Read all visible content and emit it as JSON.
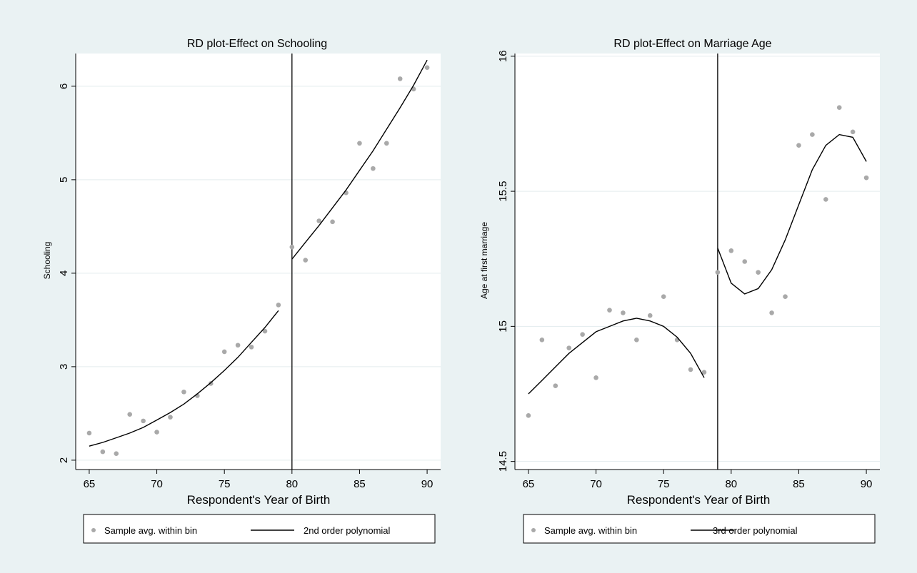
{
  "colors": {
    "background": "#eaf2f3",
    "plot_area": "#ffffff",
    "grid": "#e3ecee",
    "marker": "#a9a9a9",
    "line": "#000000"
  },
  "chart_data": [
    {
      "type": "scatter",
      "title": "RD plot-Effect on Schooling",
      "xlabel": "Respondent's Year of Birth",
      "ylabel": "Schooling",
      "xlim": [
        64,
        91
      ],
      "ylim": [
        1.9,
        6.35
      ],
      "xticks": [
        65,
        70,
        75,
        80,
        85,
        90
      ],
      "yticks": [
        2,
        3,
        4,
        5,
        6
      ],
      "grid": true,
      "cutoff": 80,
      "series": [
        {
          "name": "Sample avg. within bin",
          "kind": "points",
          "x": [
            65,
            66,
            67,
            68,
            69,
            70,
            71,
            72,
            73,
            74,
            75,
            76,
            77,
            78,
            79,
            80,
            81,
            82,
            83,
            84,
            85,
            86,
            87,
            88,
            89,
            90
          ],
          "y": [
            2.29,
            2.09,
            2.07,
            2.49,
            2.42,
            2.3,
            2.46,
            2.73,
            2.69,
            2.82,
            3.16,
            3.23,
            3.21,
            3.38,
            3.66,
            4.28,
            4.14,
            4.56,
            4.55,
            4.86,
            5.39,
            5.12,
            5.39,
            6.08,
            5.97,
            6.2
          ]
        },
        {
          "name": "2nd order  polynomial",
          "kind": "line",
          "segments": [
            {
              "x": [
                65,
                66,
                67,
                68,
                69,
                70,
                71,
                72,
                73,
                74,
                75,
                76,
                77,
                78,
                79
              ],
              "y": [
                2.15,
                2.19,
                2.24,
                2.29,
                2.35,
                2.43,
                2.51,
                2.6,
                2.71,
                2.83,
                2.96,
                3.1,
                3.26,
                3.42,
                3.6
              ]
            },
            {
              "x": [
                80,
                81,
                82,
                83,
                84,
                85,
                86,
                87,
                88,
                89,
                90
              ],
              "y": [
                4.15,
                4.33,
                4.51,
                4.7,
                4.89,
                5.1,
                5.31,
                5.54,
                5.77,
                6.01,
                6.28
              ]
            }
          ]
        }
      ],
      "legend": {
        "placement": "bottom",
        "items": [
          "Sample avg. within bin",
          "2nd order  polynomial"
        ]
      }
    },
    {
      "type": "scatter",
      "title": "RD plot-Effect on Marriage Age",
      "xlabel": "Respondent's Year of Birth",
      "ylabel": "Age at first marriage",
      "xlim": [
        64,
        91
      ],
      "ylim": [
        14.47,
        16.01
      ],
      "xticks": [
        65,
        70,
        75,
        80,
        85,
        90
      ],
      "yticks": [
        14.5,
        15,
        15.5,
        16
      ],
      "grid": true,
      "cutoff": 79,
      "series": [
        {
          "name": "Sample avg. within bin",
          "kind": "points",
          "x": [
            65,
            66,
            67,
            68,
            69,
            70,
            71,
            72,
            73,
            74,
            75,
            76,
            77,
            78,
            79,
            80,
            81,
            82,
            83,
            84,
            85,
            86,
            87,
            88,
            89,
            90
          ],
          "y": [
            14.67,
            14.95,
            14.78,
            14.92,
            14.97,
            14.81,
            15.06,
            15.05,
            14.95,
            15.04,
            15.11,
            14.95,
            14.84,
            14.83,
            15.2,
            15.28,
            15.24,
            15.2,
            15.05,
            15.11,
            15.67,
            15.71,
            15.47,
            15.81,
            15.72,
            15.55
          ]
        },
        {
          "name": "3rd order polynomial",
          "kind": "line",
          "segments": [
            {
              "x": [
                65,
                66,
                67,
                68,
                69,
                70,
                71,
                72,
                73,
                74,
                75,
                76,
                77,
                78
              ],
              "y": [
                14.75,
                14.8,
                14.85,
                14.9,
                14.94,
                14.98,
                15.0,
                15.02,
                15.03,
                15.02,
                15.0,
                14.96,
                14.9,
                14.81
              ]
            },
            {
              "x": [
                79,
                80,
                81,
                82,
                83,
                84,
                85,
                86,
                87,
                88,
                89,
                90
              ],
              "y": [
                15.29,
                15.16,
                15.12,
                15.14,
                15.21,
                15.32,
                15.45,
                15.58,
                15.67,
                15.71,
                15.7,
                15.61
              ]
            }
          ]
        }
      ],
      "legend": {
        "placement": "bottom",
        "items": [
          "Sample avg. within bin",
          "3rd order polynomial"
        ]
      }
    }
  ]
}
